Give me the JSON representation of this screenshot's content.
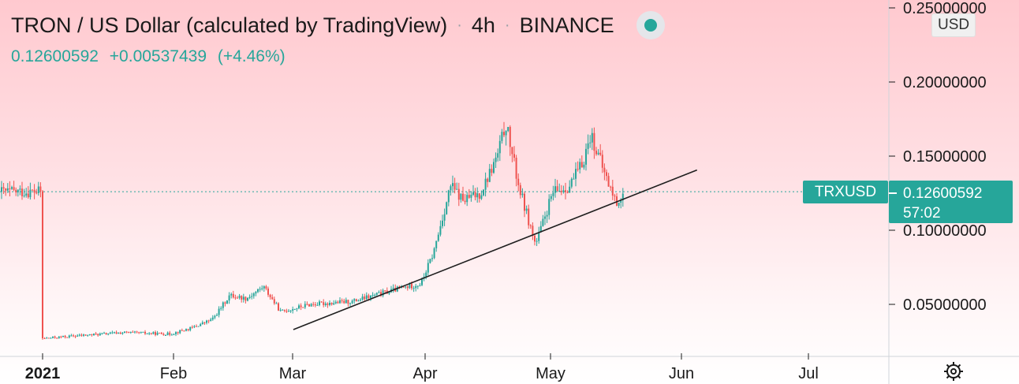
{
  "header": {
    "title": "TRON / US Dollar (calculated by TradingView)",
    "interval": "4h",
    "exchange": "BINANCE",
    "separator": "·",
    "price": "0.12600592",
    "change": "+0.00537439",
    "change_pct": "(+4.46%)",
    "status_icon": "market-open-dot"
  },
  "currency": "USD",
  "symbol": "TRXUSD",
  "price_tag": {
    "price": "0.12600592",
    "countdown": "57:02"
  },
  "colors": {
    "up": "#26a69a",
    "down": "#ef5350",
    "trendline": "#1f1f1f",
    "axis_text": "#1a1a1a",
    "grid_line": "#cfd4da"
  },
  "chart_data": {
    "type": "candlestick",
    "title": "TRON / US Dollar (calculated by TradingView)",
    "interval": "4h",
    "x_ticks": [
      "2021",
      "Feb",
      "Mar",
      "Apr",
      "May",
      "Jun",
      "Jul"
    ],
    "y_ticks": [
      "0.25000000",
      "0.20000000",
      "0.15000000",
      "0.10000000",
      "0.05000000"
    ],
    "ylim": [
      0.022,
      0.26
    ],
    "last_price": 0.12600592,
    "series": [
      {
        "name": "TRXUSD",
        "type": "ohlc-path",
        "points": [
          [
            "2021-01-01",
            0.027
          ],
          [
            "2021-01-10",
            0.029
          ],
          [
            "2021-01-20",
            0.031
          ],
          [
            "2021-01-31",
            0.03
          ],
          [
            "2021-02-05",
            0.034
          ],
          [
            "2021-02-10",
            0.04
          ],
          [
            "2021-02-14",
            0.056
          ],
          [
            "2021-02-18",
            0.054
          ],
          [
            "2021-02-22",
            0.062
          ],
          [
            "2021-02-26",
            0.045
          ],
          [
            "2021-03-05",
            0.05
          ],
          [
            "2021-03-15",
            0.052
          ],
          [
            "2021-03-25",
            0.06
          ],
          [
            "2021-03-31",
            0.064
          ],
          [
            "2021-04-03",
            0.085
          ],
          [
            "2021-04-07",
            0.13
          ],
          [
            "2021-04-10",
            0.12
          ],
          [
            "2021-04-14",
            0.125
          ],
          [
            "2021-04-18",
            0.15
          ],
          [
            "2021-04-20",
            0.172
          ],
          [
            "2021-04-23",
            0.13
          ],
          [
            "2021-04-27",
            0.09
          ],
          [
            "2021-05-01",
            0.125
          ],
          [
            "2021-05-05",
            0.13
          ],
          [
            "2021-05-08",
            0.145
          ],
          [
            "2021-05-10",
            0.165
          ],
          [
            "2021-05-13",
            0.14
          ],
          [
            "2021-05-16",
            0.118
          ],
          [
            "2021-05-18",
            0.126
          ]
        ]
      }
    ],
    "trendline": {
      "from": [
        "2021-03-01",
        0.033
      ],
      "to": [
        "2021-06-01",
        0.139
      ]
    }
  }
}
